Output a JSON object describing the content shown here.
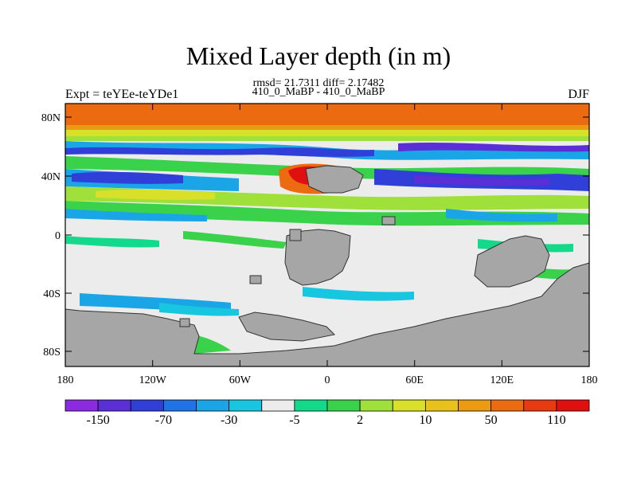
{
  "header": {
    "title": "Mixed Layer depth (in m)",
    "stats": "rmsd= 21.7311 diff= 2.17482",
    "comparison": "410_0_MaBP - 410_0_MaBP",
    "experiment": "Expt = teYEe-teYDe1",
    "season": "DJF"
  },
  "map": {
    "lat_ticks": [
      "80N",
      "40N",
      "0",
      "40S",
      "80S"
    ],
    "lon_ticks": [
      "180",
      "120W",
      "60W",
      "0",
      "60E",
      "120E",
      "180"
    ],
    "land_color": "#a6a6a6",
    "no_change_color": "#ececec"
  },
  "colorbar": {
    "labels": [
      "-150",
      "-70",
      "-30",
      "-5",
      "2",
      "10",
      "50",
      "110"
    ],
    "colors": [
      "#8a2be2",
      "#5a2fd6",
      "#2f3fd8",
      "#1f73e6",
      "#1aa6e6",
      "#19c6e0",
      "#ececec",
      "#13d98a",
      "#3ad24a",
      "#9fe03a",
      "#d8e02a",
      "#e8c21a",
      "#ec9a12",
      "#ec6a10",
      "#e83a10",
      "#e01010"
    ]
  }
}
